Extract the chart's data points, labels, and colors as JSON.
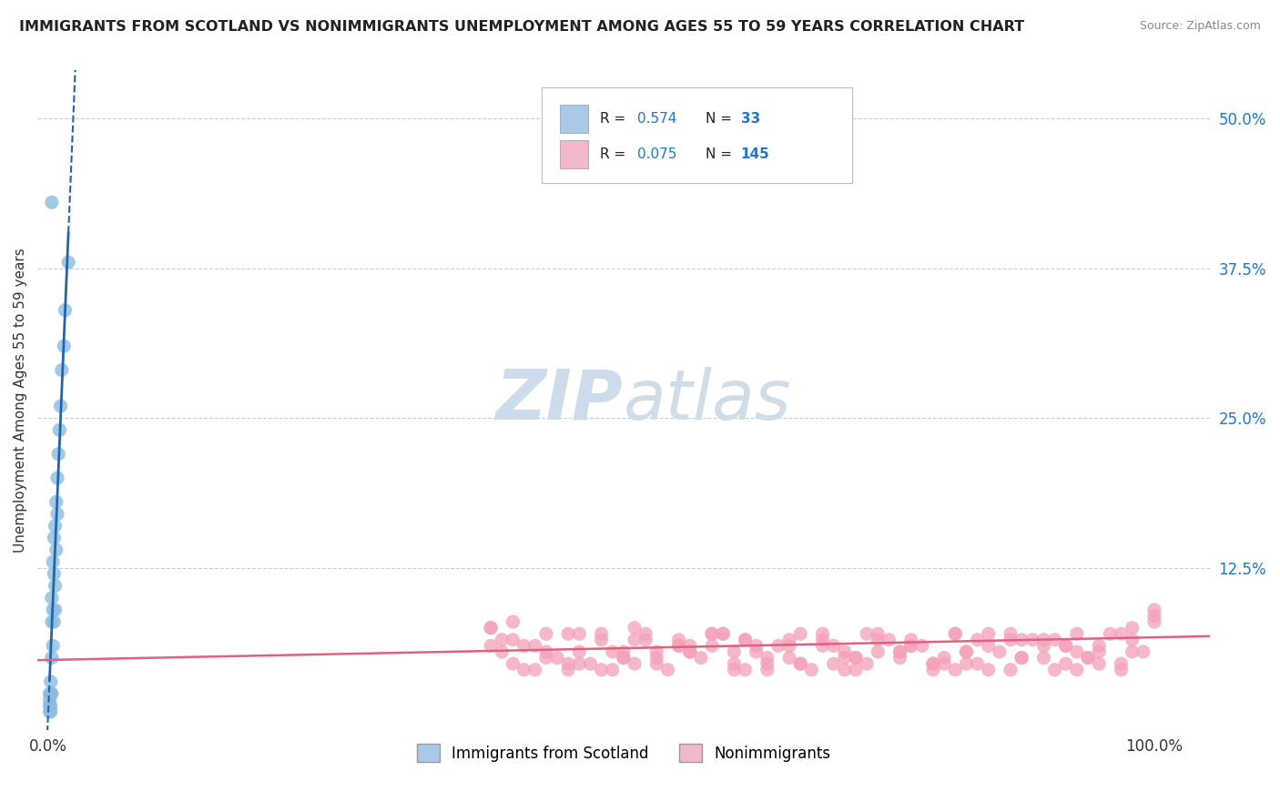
{
  "title": "IMMIGRANTS FROM SCOTLAND VS NONIMMIGRANTS UNEMPLOYMENT AMONG AGES 55 TO 59 YEARS CORRELATION CHART",
  "source": "Source: ZipAtlas.com",
  "ylabel": "Unemployment Among Ages 55 to 59 years",
  "ytick_positions": [
    0.0,
    0.125,
    0.25,
    0.375,
    0.5
  ],
  "ytick_labels": [
    "",
    "12.5%",
    "25.0%",
    "37.5%",
    "50.0%"
  ],
  "xtick_positions": [
    0.0,
    1.0
  ],
  "xtick_labels": [
    "0.0%",
    "100.0%"
  ],
  "xlim": [
    -0.01,
    1.05
  ],
  "ylim": [
    -0.01,
    0.54
  ],
  "legend1_R": "0.574",
  "legend1_N": "33",
  "legend2_R": "0.075",
  "legend2_N": "145",
  "blue_scatter_color": "#8bbcdf",
  "blue_line_color": "#2266aa",
  "pink_scatter_color": "#f4a0b8",
  "pink_line_color": "#e06080",
  "legend_box_blue": "#aac8e8",
  "legend_box_pink": "#f4b8cc",
  "watermark_color": "#ccdcec",
  "background": "#ffffff",
  "grid_color": "#cccccc",
  "blue_scatter_x": [
    0.001,
    0.001,
    0.001,
    0.001,
    0.002,
    0.002,
    0.002,
    0.002,
    0.003,
    0.003,
    0.003,
    0.003,
    0.004,
    0.004,
    0.004,
    0.005,
    0.005,
    0.005,
    0.006,
    0.006,
    0.006,
    0.007,
    0.007,
    0.008,
    0.008,
    0.009,
    0.01,
    0.011,
    0.012,
    0.014,
    0.015,
    0.018,
    0.003
  ],
  "blue_scatter_y": [
    0.005,
    0.01,
    0.015,
    0.02,
    0.005,
    0.01,
    0.02,
    0.03,
    0.02,
    0.05,
    0.08,
    0.1,
    0.06,
    0.09,
    0.13,
    0.08,
    0.12,
    0.15,
    0.09,
    0.11,
    0.16,
    0.14,
    0.18,
    0.17,
    0.2,
    0.22,
    0.24,
    0.26,
    0.29,
    0.31,
    0.34,
    0.38,
    0.43
  ],
  "pink_scatter_x": [
    0.4,
    0.42,
    0.45,
    0.47,
    0.48,
    0.5,
    0.52,
    0.53,
    0.55,
    0.57,
    0.58,
    0.6,
    0.62,
    0.63,
    0.65,
    0.67,
    0.68,
    0.7,
    0.72,
    0.73,
    0.75,
    0.77,
    0.78,
    0.8,
    0.82,
    0.83,
    0.85,
    0.87,
    0.88,
    0.9,
    0.92,
    0.93,
    0.95,
    0.97,
    0.98,
    1.0,
    0.42,
    0.45,
    0.5,
    0.55,
    0.6,
    0.65,
    0.7,
    0.75,
    0.8,
    0.85,
    0.9,
    0.95,
    1.0,
    0.4,
    0.48,
    0.53,
    0.58,
    0.63,
    0.68,
    0.73,
    0.78,
    0.83,
    0.88,
    0.93,
    0.98,
    0.43,
    0.47,
    0.52,
    0.57,
    0.62,
    0.67,
    0.72,
    0.77,
    0.82,
    0.87,
    0.92,
    0.97,
    0.41,
    0.46,
    0.51,
    0.56,
    0.61,
    0.66,
    0.71,
    0.76,
    0.81,
    0.86,
    0.91,
    0.96,
    0.44,
    0.49,
    0.54,
    0.59,
    0.64,
    0.69,
    0.74,
    0.79,
    0.84,
    0.89,
    0.94,
    0.99,
    0.4,
    0.5,
    0.6,
    0.7,
    0.8,
    0.9,
    1.0,
    0.45,
    0.55,
    0.65,
    0.75,
    0.85,
    0.95,
    0.42,
    0.52,
    0.62,
    0.72,
    0.82,
    0.92,
    0.47,
    0.57,
    0.67,
    0.77,
    0.87,
    0.97,
    0.43,
    0.53,
    0.63,
    0.73,
    0.83,
    0.93,
    0.48,
    0.58,
    0.68,
    0.78,
    0.88,
    0.98,
    0.44,
    0.54,
    0.64,
    0.74,
    0.84,
    0.94,
    0.41,
    0.51,
    0.61,
    0.71,
    0.81,
    0.91
  ],
  "pink_scatter_y": [
    0.06,
    0.045,
    0.07,
    0.04,
    0.055,
    0.065,
    0.05,
    0.075,
    0.045,
    0.06,
    0.055,
    0.07,
    0.04,
    0.065,
    0.05,
    0.06,
    0.045,
    0.07,
    0.055,
    0.04,
    0.065,
    0.05,
    0.06,
    0.045,
    0.07,
    0.055,
    0.04,
    0.065,
    0.05,
    0.06,
    0.045,
    0.07,
    0.055,
    0.04,
    0.065,
    0.09,
    0.08,
    0.055,
    0.07,
    0.05,
    0.06,
    0.045,
    0.065,
    0.055,
    0.04,
    0.07,
    0.05,
    0.06,
    0.08,
    0.075,
    0.045,
    0.065,
    0.055,
    0.04,
    0.07,
    0.05,
    0.06,
    0.045,
    0.065,
    0.055,
    0.075,
    0.04,
    0.07,
    0.055,
    0.06,
    0.045,
    0.065,
    0.05,
    0.055,
    0.04,
    0.07,
    0.06,
    0.045,
    0.065,
    0.05,
    0.055,
    0.04,
    0.07,
    0.06,
    0.045,
    0.065,
    0.05,
    0.055,
    0.04,
    0.07,
    0.06,
    0.045,
    0.065,
    0.05,
    0.055,
    0.04,
    0.07,
    0.06,
    0.045,
    0.065,
    0.05,
    0.055,
    0.075,
    0.04,
    0.07,
    0.06,
    0.045,
    0.065,
    0.085,
    0.05,
    0.055,
    0.04,
    0.07,
    0.06,
    0.045,
    0.065,
    0.05,
    0.055,
    0.04,
    0.07,
    0.06,
    0.045,
    0.065,
    0.05,
    0.055,
    0.04,
    0.07,
    0.06,
    0.045,
    0.065,
    0.05,
    0.055,
    0.04,
    0.07,
    0.06,
    0.045,
    0.065,
    0.05,
    0.055,
    0.04,
    0.07,
    0.06,
    0.045,
    0.065,
    0.05,
    0.055,
    0.04,
    0.07,
    0.06,
    0.045,
    0.065
  ],
  "blue_trend_x0": 0.0,
  "blue_trend_x1": 0.02,
  "blue_trend_y0": 0.0,
  "blue_trend_y1": 0.27,
  "blue_trend_dashed_x0": 0.0,
  "blue_trend_dashed_y0": -0.01,
  "blue_trend_dashed_x1": 0.1,
  "blue_trend_dashed_y1": 0.54,
  "pink_trend_y_at_0": 0.048,
  "pink_trend_y_at_1": 0.068,
  "title_fontsize": 11.5,
  "source_fontsize": 9,
  "axis_label_fontsize": 11,
  "tick_fontsize": 12,
  "legend_fontsize": 11,
  "watermark_fontsize": 55
}
